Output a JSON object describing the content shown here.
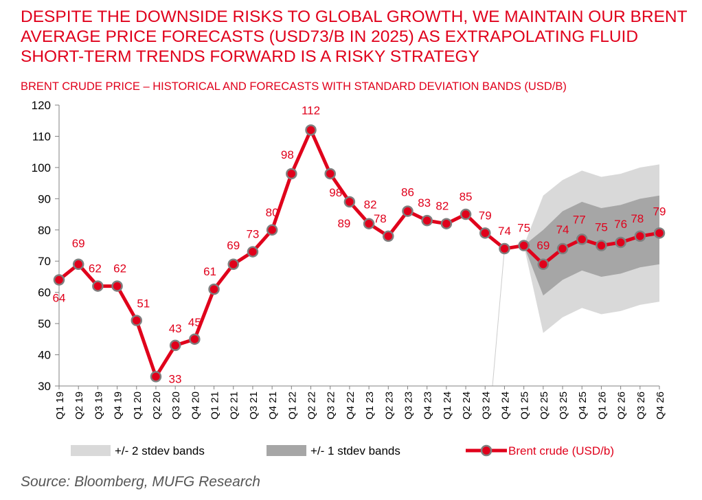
{
  "headline": "DESPITE THE DOWNSIDE RISKS TO GLOBAL GROWTH, WE MAINTAIN OUR BRENT AVERAGE PRICE FORECASTS (USD73/B IN 2025) AS EXTRAPOLATING FLUID SHORT-TERM TRENDS FORWARD IS A RISKY STRATEGY",
  "source": "Source: Bloomberg, MUFG Research",
  "colors": {
    "accent": "#e0001b",
    "band2": "#d9d9d9",
    "band1": "#a6a6a6",
    "marker_edge": "#7f7f7f"
  },
  "chart_data": {
    "type": "line",
    "title": "BRENT CRUDE PRICE – HISTORICAL AND FORECASTS WITH STANDARD DEVIATION BANDS (USD/B)",
    "xlabel": "",
    "ylabel": "",
    "ylim": [
      30,
      120
    ],
    "yticks": [
      30,
      40,
      50,
      60,
      70,
      80,
      90,
      100,
      110,
      120
    ],
    "grid": false,
    "legend_position": "bottom",
    "categories": [
      "Q1 19",
      "Q2 19",
      "Q3 19",
      "Q4 19",
      "Q1 20",
      "Q2 20",
      "Q3 20",
      "Q4 20",
      "Q1 21",
      "Q2 21",
      "Q3 21",
      "Q4 21",
      "Q1 22",
      "Q2 22",
      "Q3 22",
      "Q4 22",
      "Q1 23",
      "Q2 23",
      "Q3 23",
      "Q4 23",
      "Q1 24",
      "Q2 24",
      "Q3 24",
      "Q4 24",
      "Q1 25",
      "Q2 25",
      "Q3 25",
      "Q4 25",
      "Q1 26",
      "Q2 26",
      "Q3 26",
      "Q4 26"
    ],
    "series": [
      {
        "name": "Brent crude (USD/b)",
        "values": [
          64,
          69,
          62,
          62,
          51,
          33,
          43,
          45,
          61,
          69,
          73,
          80,
          98,
          112,
          98,
          89,
          82,
          78,
          86,
          83,
          82,
          85,
          79,
          74,
          75,
          69,
          74,
          77,
          75,
          76,
          78,
          79
        ],
        "labels": [
          "64",
          "69",
          "62",
          "62",
          "51",
          "33",
          "43",
          "45",
          "61",
          "69",
          "73",
          "80",
          "98",
          "112",
          "98",
          "89",
          "82",
          "78",
          "86",
          "83",
          "82",
          "85",
          "79",
          "74",
          "75",
          "69",
          "74",
          "77",
          "75",
          "76",
          "78",
          "79"
        ]
      },
      {
        "name": "+/- 1 stdev bands",
        "start_index": 24,
        "upper": [
          75,
          80,
          86,
          89,
          87,
          88,
          90,
          91
        ],
        "lower": [
          75,
          59,
          64,
          67,
          65,
          66,
          68,
          69
        ]
      },
      {
        "name": "+/- 2 stdev bands",
        "start_index": 24,
        "upper": [
          75,
          91,
          96,
          99,
          97,
          98,
          100,
          101
        ],
        "lower": [
          75,
          47,
          52,
          55,
          53,
          54,
          56,
          57
        ]
      }
    ],
    "legend": [
      "+/- 2 stdev bands",
      "+/- 1 stdev bands",
      "Brent crude (USD/b)"
    ]
  }
}
